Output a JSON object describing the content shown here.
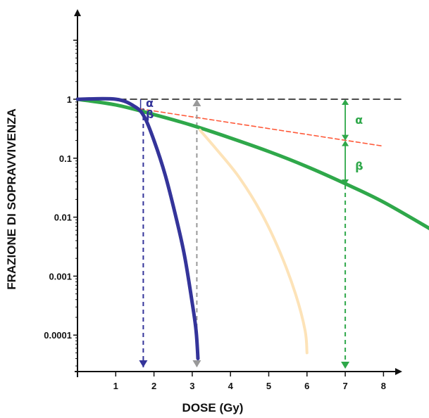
{
  "chart_data": {
    "type": "line",
    "title": "",
    "xlabel": "DOSE (Gy)",
    "ylabel": "FRAZIONE DI SOPRAVVIVENZA",
    "x_scale": "linear",
    "y_scale": "log",
    "xlim": [
      0,
      8.5
    ],
    "ylim": [
      1e-05,
      100
    ],
    "x_ticks": [
      "1",
      "2",
      "3",
      "4",
      "5",
      "6",
      "7",
      "8"
    ],
    "y_ticks": [
      "1",
      "0.1",
      "0.01",
      "0.001",
      "0.0001"
    ],
    "grid": false,
    "legend": "none",
    "series": [
      {
        "color": "#2fa84a",
        "style": "solid",
        "x": [
          0,
          1,
          2,
          3,
          4,
          5,
          6,
          7,
          8,
          9.3
        ],
        "y": [
          1,
          0.8,
          0.55,
          0.36,
          0.22,
          0.13,
          0.072,
          0.037,
          0.018,
          0.0059
        ]
      },
      {
        "color": "#34349a",
        "style": "solid",
        "x": [
          0,
          1.0,
          1.5,
          1.75,
          2.0,
          2.3,
          2.6,
          2.8,
          3.0,
          3.1,
          3.15
        ],
        "y": [
          1,
          1,
          0.75,
          0.5,
          0.2,
          0.05,
          0.0085,
          0.0022,
          0.00035,
          0.00012,
          4e-05
        ]
      },
      {
        "color": "#fde3b8",
        "style": "solid",
        "x": [
          3.2,
          3.6,
          4.2,
          4.8,
          5.3,
          5.7,
          5.95,
          6.0
        ],
        "y": [
          0.3,
          0.15,
          0.05,
          0.012,
          0.0025,
          0.0005,
          0.00012,
          5e-05
        ]
      },
      {
        "color": "#ff5a3a",
        "style": "dashed",
        "x": [
          0,
          8
        ],
        "y": [
          1,
          0.16
        ]
      },
      {
        "color": "#111111",
        "style": "dashed",
        "x": [
          0,
          8.5
        ],
        "y": [
          1,
          1
        ]
      }
    ],
    "annotations": [
      {
        "text": "α",
        "color": "#2fa84a"
      },
      {
        "text": "β",
        "color": "#2fa84a"
      },
      {
        "text": "α",
        "color": "#34349a"
      },
      {
        "text": "β",
        "color": "#34349a"
      }
    ]
  }
}
